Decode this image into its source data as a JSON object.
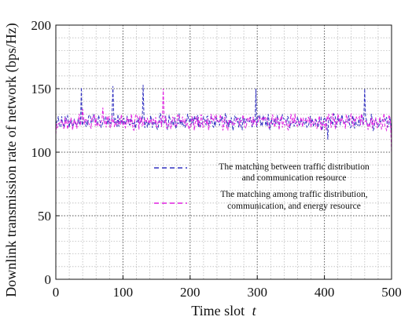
{
  "chart_data": {
    "type": "line",
    "xlabel": "Time slot",
    "xlabel_var": "t",
    "ylabel": "Downlink transmission rate of network (bps/Hz)",
    "xlim": [
      0,
      500
    ],
    "ylim": [
      0,
      200
    ],
    "xticks": [
      0,
      100,
      200,
      300,
      400,
      500
    ],
    "yticks": [
      0,
      50,
      100,
      150,
      200
    ],
    "grid": true,
    "legend_position": "center-right",
    "series": [
      {
        "name_lines": [
          "The matching between traffic distribution",
          "and communication resource"
        ],
        "color": "#3030c0",
        "dash": "dashed",
        "x": [
          0,
          10,
          20,
          30,
          38,
          45,
          55,
          65,
          75,
          85,
          95,
          105,
          115,
          122,
          130,
          140,
          150,
          160,
          170,
          180,
          190,
          200,
          210,
          220,
          230,
          240,
          250,
          260,
          270,
          280,
          290,
          298,
          305,
          315,
          325,
          335,
          345,
          355,
          365,
          375,
          385,
          395,
          405,
          410,
          420,
          430,
          440,
          450,
          460,
          470,
          480,
          490,
          500
        ],
        "y": [
          122,
          124,
          121,
          126,
          151,
          123,
          125,
          120,
          127,
          152,
          124,
          122,
          128,
          121,
          153,
          124,
          122,
          126,
          120,
          125,
          123,
          119,
          127,
          124,
          121,
          126,
          122,
          125,
          120,
          124,
          123,
          150,
          122,
          126,
          121,
          124,
          127,
          122,
          120,
          125,
          123,
          126,
          110,
          122,
          124,
          121,
          126,
          123,
          150,
          122,
          125,
          124,
          113
        ]
      },
      {
        "name_lines": [
          "The matching among traffic distribution,",
          "communication, and energy resource"
        ],
        "color": "#e020e0",
        "dash": "dashed",
        "x": [
          0,
          10,
          20,
          30,
          40,
          50,
          60,
          70,
          80,
          90,
          100,
          110,
          120,
          130,
          140,
          150,
          160,
          170,
          180,
          190,
          200,
          210,
          220,
          230,
          240,
          250,
          260,
          270,
          280,
          290,
          300,
          310,
          320,
          330,
          340,
          350,
          360,
          370,
          380,
          390,
          400,
          410,
          420,
          430,
          440,
          450,
          460,
          470,
          480,
          490,
          500
        ],
        "y": [
          114,
          125,
          123,
          127,
          134,
          126,
          122,
          135,
          124,
          126,
          122,
          127,
          124,
          121,
          125,
          123,
          150,
          124,
          122,
          125,
          121,
          126,
          123,
          124,
          120,
          125,
          124,
          122,
          126,
          123,
          125,
          122,
          124,
          126,
          121,
          127,
          123,
          125,
          122,
          124,
          121,
          125,
          123,
          126,
          124,
          122,
          125,
          127,
          122,
          124,
          99
        ]
      }
    ]
  }
}
